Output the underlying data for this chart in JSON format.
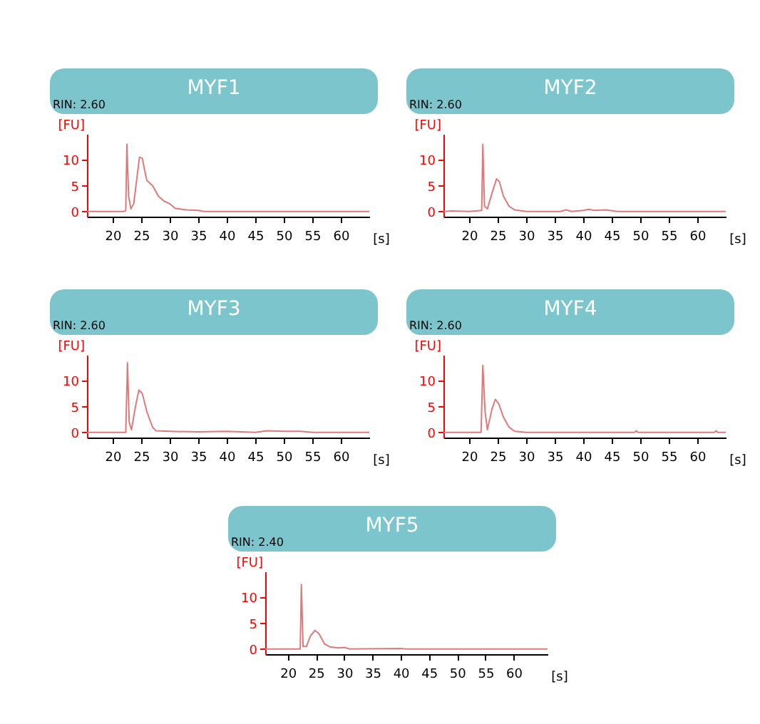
{
  "chart_data": [
    {
      "type": "line",
      "title": "MYF1",
      "subtitle": "RIN: 2.60",
      "xlabel": "[s]",
      "ylabel": "[FU]",
      "xlim": [
        15.5,
        65
      ],
      "ylim": [
        -1,
        15
      ],
      "xticks": [
        20,
        25,
        30,
        35,
        40,
        45,
        50,
        55,
        60
      ],
      "yticks": [
        0,
        5,
        10
      ],
      "x": [
        15.5,
        22,
        22.3,
        22.5,
        22.8,
        23.2,
        23.7,
        24.2,
        24.7,
        25.2,
        25.6,
        26,
        27,
        28,
        29,
        30,
        31,
        33,
        35,
        36,
        65
      ],
      "series": [
        {
          "color": "#e07a7a",
          "values": [
            0,
            0,
            0.2,
            13,
            3,
            0.5,
            1.5,
            6,
            10.5,
            10.3,
            8,
            6,
            5,
            3,
            2,
            1.5,
            0.6,
            0.3,
            0.2,
            0,
            0
          ]
        }
      ]
    },
    {
      "type": "line",
      "title": "MYF2",
      "subtitle": "RIN: 2.60",
      "xlabel": "[s]",
      "ylabel": "[FU]",
      "xlim": [
        15.5,
        65
      ],
      "ylim": [
        -1,
        15
      ],
      "xticks": [
        20,
        25,
        30,
        35,
        40,
        45,
        50,
        55,
        60
      ],
      "yticks": [
        0,
        5,
        10
      ],
      "x": [
        15.5,
        17,
        20,
        22.2,
        22.4,
        22.7,
        23.2,
        24,
        24.8,
        25.3,
        26,
        27,
        28,
        30,
        36,
        37,
        38,
        40,
        41,
        42,
        44,
        46,
        65
      ],
      "series": [
        {
          "color": "#e07a7a",
          "values": [
            0,
            0.1,
            0,
            0.2,
            13,
            1,
            0.5,
            3.5,
            6.3,
            5.8,
            3,
            1,
            0.3,
            0,
            0,
            0.3,
            0,
            0.2,
            0.4,
            0.2,
            0.3,
            0,
            0
          ]
        }
      ]
    },
    {
      "type": "line",
      "title": "MYF3",
      "subtitle": "RIN: 2.60",
      "xlabel": "[s]",
      "ylabel": "[FU]",
      "xlim": [
        15.5,
        65
      ],
      "ylim": [
        -1,
        15
      ],
      "xticks": [
        20,
        25,
        30,
        35,
        40,
        45,
        50,
        55,
        60
      ],
      "yticks": [
        0,
        5,
        10
      ],
      "x": [
        15.5,
        22.3,
        22.6,
        22.9,
        23.3,
        24,
        24.6,
        25.2,
        26,
        27,
        27.6,
        30,
        35,
        40,
        45,
        47,
        50,
        53,
        55,
        65
      ],
      "series": [
        {
          "color": "#e07a7a",
          "values": [
            0,
            0,
            13.5,
            2,
            0.5,
            5,
            8.2,
            7.5,
            4,
            1,
            0.3,
            0.2,
            0.1,
            0.2,
            0,
            0.3,
            0.2,
            0.2,
            0,
            0
          ]
        }
      ]
    },
    {
      "type": "line",
      "title": "MYF4",
      "subtitle": "RIN: 2.60",
      "xlabel": "[s]",
      "ylabel": "[FU]",
      "xlim": [
        15.5,
        65
      ],
      "ylim": [
        -1,
        15
      ],
      "xticks": [
        20,
        25,
        30,
        35,
        40,
        45,
        50,
        55,
        60
      ],
      "yticks": [
        0,
        5,
        10
      ],
      "x": [
        15.5,
        22.1,
        22.4,
        22.8,
        23.2,
        24,
        24.6,
        25.2,
        26,
        27,
        28,
        30,
        49,
        49.3,
        49.6,
        63,
        63.3,
        63.6,
        65
      ],
      "series": [
        {
          "color": "#e07a7a",
          "values": [
            0,
            0,
            13,
            4,
            0.5,
            4.5,
            6.4,
            5.5,
            3,
            1,
            0.2,
            0,
            0,
            0.3,
            0,
            0,
            0.3,
            0,
            0
          ]
        }
      ]
    },
    {
      "type": "line",
      "title": "MYF5",
      "subtitle": "RIN: 2.40",
      "xlabel": "[s]",
      "ylabel": "[FU]",
      "xlim": [
        16,
        66
      ],
      "ylim": [
        -1,
        15
      ],
      "xticks": [
        20,
        25,
        30,
        35,
        40,
        45,
        50,
        55,
        60
      ],
      "yticks": [
        0,
        5,
        10
      ],
      "x": [
        16,
        22.2,
        22.4,
        22.7,
        23.3,
        24,
        24.8,
        25.5,
        26.5,
        27.5,
        29,
        30,
        31,
        40,
        41,
        66
      ],
      "series": [
        {
          "color": "#e07a7a",
          "values": [
            0,
            0,
            12.5,
            0.5,
            0.5,
            2.5,
            3.6,
            3,
            1,
            0.4,
            0.2,
            0.3,
            0,
            0.1,
            0,
            0
          ]
        }
      ]
    }
  ]
}
